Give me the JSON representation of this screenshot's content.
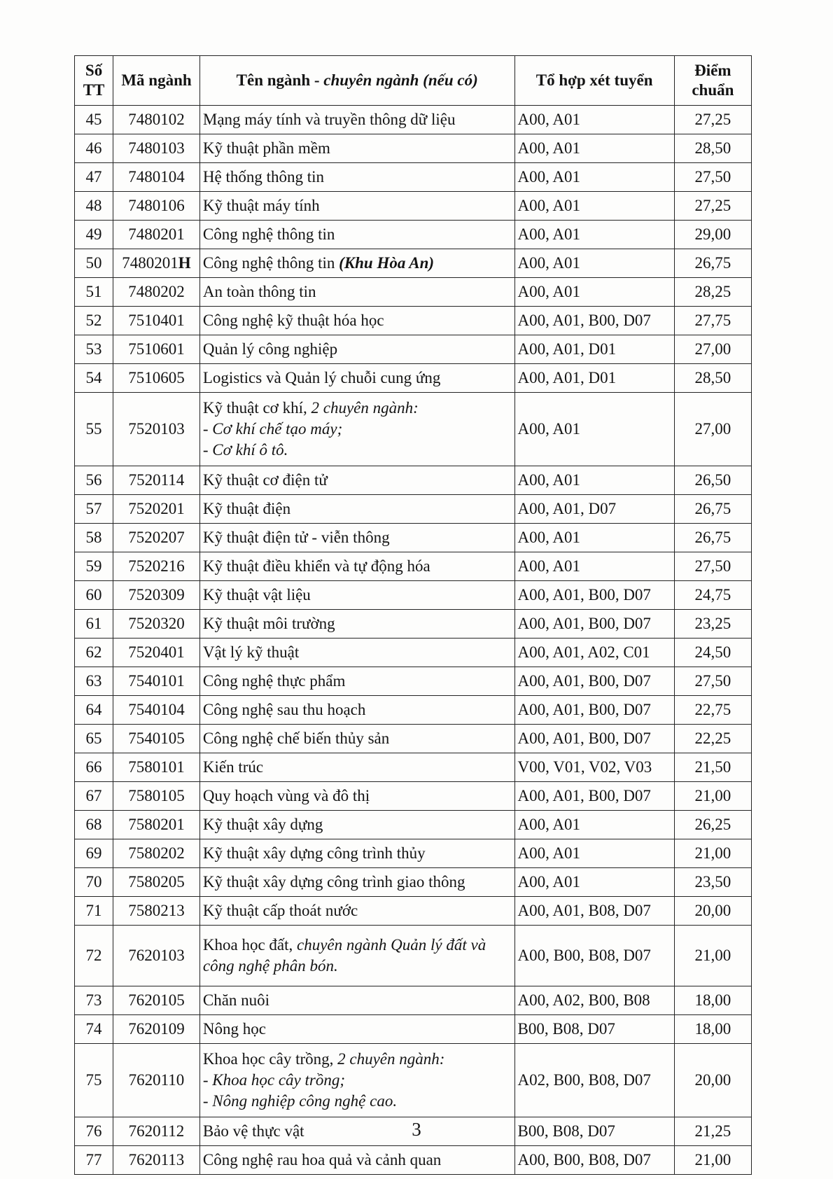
{
  "document": {
    "page_number": "3"
  },
  "table": {
    "header": {
      "stt_line1": "Số",
      "stt_line2": "TT",
      "code": "Mã ngành",
      "name_regular": "Tên ngành - ",
      "name_italic": "chuyên ngành (nếu có)",
      "combo": "Tổ hợp xét tuyển",
      "score_line1": "Điểm",
      "score_line2": "chuẩn"
    },
    "rows": [
      {
        "stt": "45",
        "code": "7480102",
        "name": [
          [
            {
              "t": "Mạng máy tính và truyền thông dữ liệu"
            }
          ]
        ],
        "combo": "A00, A01",
        "score": "27,25"
      },
      {
        "stt": "46",
        "code": "7480103",
        "name": [
          [
            {
              "t": "Kỹ thuật phần mềm"
            }
          ]
        ],
        "combo": "A00, A01",
        "score": "28,50"
      },
      {
        "stt": "47",
        "code": "7480104",
        "name": [
          [
            {
              "t": "Hệ thống thông tin"
            }
          ]
        ],
        "combo": "A00, A01",
        "score": "27,50"
      },
      {
        "stt": "48",
        "code": "7480106",
        "name": [
          [
            {
              "t": "Kỹ thuật máy tính"
            }
          ]
        ],
        "combo": "A00, A01",
        "score": "27,25"
      },
      {
        "stt": "49",
        "code": "7480201",
        "name": [
          [
            {
              "t": "Công nghệ thông tin"
            }
          ]
        ],
        "combo": "A00, A01",
        "score": "29,00"
      },
      {
        "stt": "50",
        "code": "7480201",
        "code_suffix": "H",
        "name": [
          [
            {
              "t": "Công nghệ thông tin "
            },
            {
              "t": "(Khu Hòa An)",
              "i": true,
              "b": true
            }
          ]
        ],
        "combo": "A00, A01",
        "score": "26,75"
      },
      {
        "stt": "51",
        "code": "7480202",
        "name": [
          [
            {
              "t": "An toàn thông tin"
            }
          ]
        ],
        "combo": "A00, A01",
        "score": "28,25"
      },
      {
        "stt": "52",
        "code": "7510401",
        "name": [
          [
            {
              "t": "Công nghệ kỹ thuật hóa học"
            }
          ]
        ],
        "combo": "A00, A01, B00, D07",
        "score": "27,75"
      },
      {
        "stt": "53",
        "code": "7510601",
        "name": [
          [
            {
              "t": "Quản lý công nghiệp"
            }
          ]
        ],
        "combo": "A00, A01, D01",
        "score": "27,00"
      },
      {
        "stt": "54",
        "code": "7510605",
        "name": [
          [
            {
              "t": "Logistics và Quản lý chuỗi cung ứng"
            }
          ]
        ],
        "combo": "A00, A01, D01",
        "score": "28,50"
      },
      {
        "stt": "55",
        "code": "7520103",
        "name": [
          [
            {
              "t": "Kỹ thuật cơ khí, "
            },
            {
              "t": "2 chuyên ngành:",
              "i": true
            }
          ],
          [
            {
              "t": "- Cơ khí chế tạo máy;",
              "i": true
            }
          ],
          [
            {
              "t": "- Cơ khí ô tô.",
              "i": true
            }
          ]
        ],
        "combo": "A00, A01",
        "score": "27,00"
      },
      {
        "stt": "56",
        "code": "7520114",
        "name": [
          [
            {
              "t": "Kỹ thuật cơ điện tử"
            }
          ]
        ],
        "combo": "A00, A01",
        "score": "26,50"
      },
      {
        "stt": "57",
        "code": "7520201",
        "name": [
          [
            {
              "t": "Kỹ thuật điện"
            }
          ]
        ],
        "combo": "A00, A01, D07",
        "score": "26,75"
      },
      {
        "stt": "58",
        "code": "7520207",
        "name": [
          [
            {
              "t": "Kỹ thuật điện tử - viễn thông"
            }
          ]
        ],
        "combo": "A00, A01",
        "score": "26,75"
      },
      {
        "stt": "59",
        "code": "7520216",
        "name": [
          [
            {
              "t": "Kỹ thuật điều khiển và tự động hóa"
            }
          ]
        ],
        "combo": "A00, A01",
        "score": "27,50"
      },
      {
        "stt": "60",
        "code": "7520309",
        "name": [
          [
            {
              "t": "Kỹ thuật vật liệu"
            }
          ]
        ],
        "combo": "A00, A01, B00, D07",
        "score": "24,75"
      },
      {
        "stt": "61",
        "code": "7520320",
        "name": [
          [
            {
              "t": "Kỹ thuật môi trường"
            }
          ]
        ],
        "combo": "A00, A01, B00, D07",
        "score": "23,25"
      },
      {
        "stt": "62",
        "code": "7520401",
        "name": [
          [
            {
              "t": "Vật lý kỹ thuật"
            }
          ]
        ],
        "combo": "A00, A01, A02, C01",
        "score": "24,50"
      },
      {
        "stt": "63",
        "code": "7540101",
        "name": [
          [
            {
              "t": "Công nghệ thực phẩm"
            }
          ]
        ],
        "combo": "A00, A01, B00, D07",
        "score": "27,50"
      },
      {
        "stt": "64",
        "code": "7540104",
        "name": [
          [
            {
              "t": "Công nghệ sau thu hoạch"
            }
          ]
        ],
        "combo": "A00, A01, B00, D07",
        "score": "22,75"
      },
      {
        "stt": "65",
        "code": "7540105",
        "name": [
          [
            {
              "t": "Công nghệ chế biến thủy sản"
            }
          ]
        ],
        "combo": "A00, A01, B00, D07",
        "score": "22,25"
      },
      {
        "stt": "66",
        "code": "7580101",
        "name": [
          [
            {
              "t": "Kiến trúc"
            }
          ]
        ],
        "combo": "V00, V01, V02, V03",
        "score": "21,50"
      },
      {
        "stt": "67",
        "code": "7580105",
        "name": [
          [
            {
              "t": "Quy hoạch vùng và đô thị"
            }
          ]
        ],
        "combo": "A00, A01, B00, D07",
        "score": "21,00"
      },
      {
        "stt": "68",
        "code": "7580201",
        "name": [
          [
            {
              "t": "Kỹ thuật xây dựng"
            }
          ]
        ],
        "combo": "A00, A01",
        "score": "26,25"
      },
      {
        "stt": "69",
        "code": "7580202",
        "name": [
          [
            {
              "t": "Kỹ thuật xây dựng công trình thủy"
            }
          ]
        ],
        "combo": "A00, A01",
        "score": "21,00"
      },
      {
        "stt": "70",
        "code": "7580205",
        "name": [
          [
            {
              "t": "Kỹ thuật xây dựng công trình giao thông"
            }
          ]
        ],
        "combo": "A00, A01",
        "score": "23,50"
      },
      {
        "stt": "71",
        "code": "7580213",
        "name": [
          [
            {
              "t": "Kỹ thuật cấp thoát nước"
            }
          ]
        ],
        "combo": "A00, A01, B08, D07",
        "score": "20,00"
      },
      {
        "stt": "72",
        "code": "7620103",
        "name": [
          [
            {
              "t": "Khoa học đất, "
            },
            {
              "t": "chuyên ngành Quản lý đất và",
              "i": true
            }
          ],
          [
            {
              "t": "công nghệ phân bón.",
              "i": true
            }
          ]
        ],
        "combo": "A00, B00, B08, D07",
        "score": "21,00"
      },
      {
        "stt": "73",
        "code": "7620105",
        "name": [
          [
            {
              "t": "Chăn nuôi"
            }
          ]
        ],
        "combo": "A00, A02, B00, B08",
        "score": "18,00"
      },
      {
        "stt": "74",
        "code": "7620109",
        "name": [
          [
            {
              "t": "Nông học"
            }
          ]
        ],
        "combo": "B00, B08, D07",
        "score": "18,00"
      },
      {
        "stt": "75",
        "code": "7620110",
        "name": [
          [
            {
              "t": "Khoa học cây trồng, "
            },
            {
              "t": "2 chuyên ngành:",
              "i": true
            }
          ],
          [
            {
              "t": "- Khoa học cây trồng;",
              "i": true
            }
          ],
          [
            {
              "t": "- Nông nghiệp công nghệ cao.",
              "i": true
            }
          ]
        ],
        "combo": "A02, B00, B08, D07",
        "score": "20,00"
      },
      {
        "stt": "76",
        "code": "7620112",
        "name": [
          [
            {
              "t": "Bảo vệ thực vật"
            }
          ]
        ],
        "combo": "B00, B08, D07",
        "score": "21,25"
      },
      {
        "stt": "77",
        "code": "7620113",
        "name": [
          [
            {
              "t": "Công nghệ rau hoa quả và cảnh quan"
            }
          ]
        ],
        "combo": "A00, B00, B08, D07",
        "score": "21,00"
      }
    ]
  }
}
